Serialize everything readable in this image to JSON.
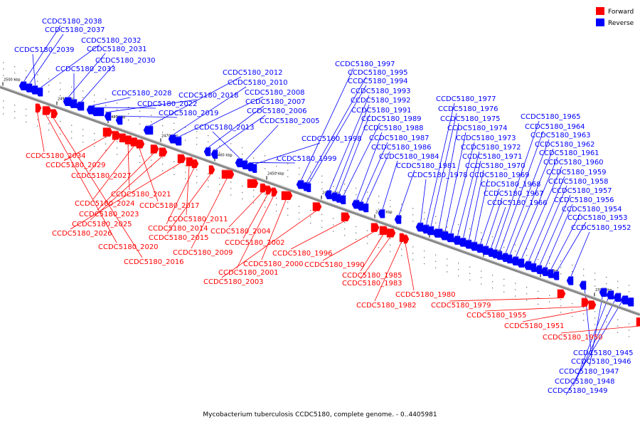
{
  "legend": [
    {
      "label": "Forward",
      "color": "#ff0000"
    },
    {
      "label": "Reverse",
      "color": "#0000ff"
    }
  ],
  "ticks": [
    "2500 kbp",
    "2490 kbp",
    "2480 kbp",
    "2470 kbp",
    "2460 kbp",
    "2450 kbp",
    "2440 kbp",
    "2430 kbp",
    "2420 kbp",
    "2410 kbp",
    "2400 kbp",
    "2390 kbp"
  ],
  "reverse_genes": [
    "CCDC5180_2038",
    "CCDC5180_2037",
    "CCDC5180_2039",
    "CCDC5180_2032",
    "CCDC5180_2031",
    "CCDC5180_2033",
    "CCDC5180_2030",
    "CCDC5180_2028",
    "CCDC5180_2022",
    "CCDC5180_2018",
    "CCDC5180_2019",
    "CCDC5180_2012",
    "CCDC5180_2010",
    "CCDC5180_2008",
    "CCDC5180_2007",
    "CCDC5180_2006",
    "CCDC5180_2013",
    "CCDC5180_2005",
    "CCDC5180_1999",
    "CCDC5180_1998",
    "CCDC5180_1997",
    "CCDC5180_1995",
    "CCDC5180_1994",
    "CCDC5180_1993",
    "CCDC5180_1992",
    "CCDC5180_1991",
    "CCDC5180_1989",
    "CCDC5180_1988",
    "CCDC5180_1987",
    "CCDC5180_1986",
    "CCDC5180_1984",
    "CCDC5180_1981",
    "CCDC5180_1978",
    "CCDC5180_1977",
    "CCDC5180_1976",
    "CCDC5180_1975",
    "CCDC5180_1974",
    "CCDC5180_1973",
    "CCDC5180_1972",
    "CCDC5180_1971",
    "CCDC5180_1970",
    "CCDC5180_1969",
    "CCDC5180_1968",
    "CCDC5180_1967",
    "CCDC5180_1966",
    "CCDC5180_1965",
    "CCDC5180_1964",
    "CCDC5180_1963",
    "CCDC5180_1962",
    "CCDC5180_1961",
    "CCDC5180_1960",
    "CCDC5180_1959",
    "CCDC5180_1958",
    "CCDC5180_1957",
    "CCDC5180_1956",
    "CCDC5180_1954",
    "CCDC5180_1953",
    "CCDC5180_1952",
    "CCDC5180_1945",
    "CCDC5180_1946",
    "CCDC5180_1947",
    "CCDC5180_1948",
    "CCDC5180_1949"
  ],
  "forward_genes": [
    "CCDC5180_2034",
    "CCDC5180_2029",
    "CCDC5180_2027",
    "CCDC5180_2021",
    "CCDC5180_2024",
    "CCDC5180_2017",
    "CCDC5180_2023",
    "CCDC5180_2025",
    "CCDC5180_2026",
    "CCDC5180_2011",
    "CCDC5180_2014",
    "CCDC5180_2015",
    "CCDC5180_2020",
    "CCDC5180_2016",
    "CCDC5180_2004",
    "CCDC5180_2009",
    "CCDC5180_2002",
    "CCDC5180_2000",
    "CCDC5180_2001",
    "CCDC5180_2003",
    "CCDC5180_1996",
    "CCDC5180_1990",
    "CCDC5180_1985",
    "CCDC5180_1983",
    "CCDC5180_1982",
    "CCDC5180_1980",
    "CCDC5180_1979",
    "CCDC5180_1955",
    "CCDC5180_1951",
    "CCDC5180_1950"
  ],
  "caption": "Mycobacterium tuberculosis CCDC5180, complete genome. - 0..4405981"
}
